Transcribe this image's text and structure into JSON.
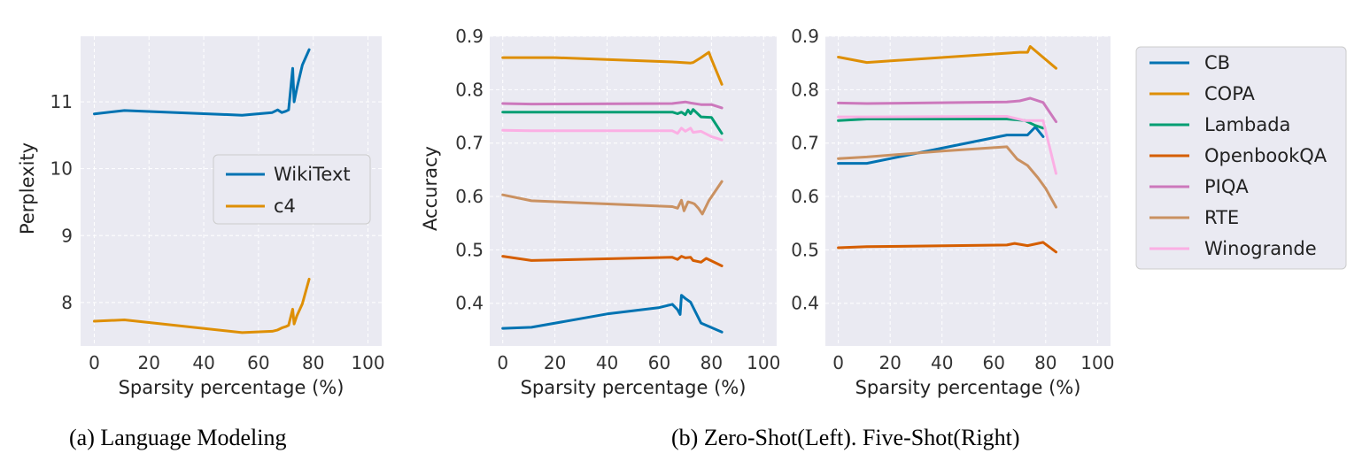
{
  "captions": {
    "a": "(a)  Language Modeling",
    "b": "(b)  Zero-Shot(Left). Five-Shot(Right)"
  },
  "colors": {
    "plot_bg": "#eaeaf2",
    "grid": "#ffffff",
    "CB": "#0173b2",
    "COPA": "#de8f05",
    "Lambada": "#029e73",
    "OpenbookQA": "#d55e00",
    "PIQA": "#cc78bc",
    "RTE": "#ca9161",
    "Winogrande": "#fbafe4",
    "WikiText": "#0173b2",
    "c4": "#de8f05"
  },
  "chart_data": [
    {
      "type": "line",
      "xlabel": "Sparsity percentage (%)",
      "ylabel": "Perplexity",
      "xlim": [
        -5,
        105
      ],
      "ylim": [
        7.35,
        11.98
      ],
      "xticks": [
        0,
        20,
        40,
        60,
        80,
        100
      ],
      "yticks": [
        8,
        9,
        10,
        11
      ],
      "grid": true,
      "legend": "center-right",
      "series": [
        {
          "name": "WikiText",
          "color": "#0173b2",
          "x": [
            0,
            11,
            54,
            65,
            67,
            68.5,
            70,
            71,
            72.5,
            73,
            74,
            76,
            78.5
          ],
          "y": [
            10.82,
            10.87,
            10.8,
            10.84,
            10.88,
            10.84,
            10.86,
            10.88,
            11.5,
            11.0,
            11.2,
            11.55,
            11.78
          ]
        },
        {
          "name": "c4",
          "color": "#de8f05",
          "x": [
            0,
            11,
            54,
            65,
            67,
            68.5,
            70,
            71,
            72.5,
            73,
            74,
            76,
            78.5
          ],
          "y": [
            7.72,
            7.74,
            7.55,
            7.57,
            7.59,
            7.62,
            7.64,
            7.66,
            7.9,
            7.68,
            7.8,
            7.98,
            8.35
          ]
        }
      ]
    },
    {
      "type": "line",
      "xlabel": "Sparsity percentage (%)",
      "ylabel": "Accuracy",
      "xlim": [
        -5,
        105
      ],
      "ylim": [
        0.32,
        0.9
      ],
      "xticks": [
        0,
        20,
        40,
        60,
        80,
        100
      ],
      "yticks": [
        0.4,
        0.5,
        0.6,
        0.7,
        0.8,
        0.9
      ],
      "grid": true,
      "series": [
        {
          "name": "CB",
          "color": "#0173b2",
          "x": [
            0,
            11,
            40,
            60,
            65,
            67,
            68,
            68.5,
            70,
            72,
            76,
            84
          ],
          "y": [
            0.353,
            0.355,
            0.38,
            0.392,
            0.398,
            0.388,
            0.379,
            0.415,
            0.409,
            0.402,
            0.363,
            0.346
          ]
        },
        {
          "name": "COPA",
          "color": "#de8f05",
          "x": [
            0,
            20,
            65,
            72,
            73,
            76,
            79,
            80,
            84
          ],
          "y": [
            0.86,
            0.86,
            0.852,
            0.85,
            0.851,
            0.86,
            0.87,
            0.857,
            0.81
          ]
        },
        {
          "name": "Lambada",
          "color": "#029e73",
          "x": [
            0,
            65,
            67,
            68.5,
            70,
            71,
            72,
            73,
            76,
            80,
            84
          ],
          "y": [
            0.758,
            0.758,
            0.755,
            0.758,
            0.753,
            0.762,
            0.755,
            0.763,
            0.749,
            0.748,
            0.718
          ]
        },
        {
          "name": "OpenbookQA",
          "color": "#d55e00",
          "x": [
            0,
            11,
            65,
            67,
            68.5,
            70,
            72,
            73,
            76,
            78,
            84
          ],
          "y": [
            0.488,
            0.48,
            0.486,
            0.482,
            0.488,
            0.485,
            0.486,
            0.48,
            0.477,
            0.484,
            0.47
          ]
        },
        {
          "name": "PIQA",
          "color": "#cc78bc",
          "x": [
            0,
            11,
            65,
            70,
            72,
            76,
            80,
            84
          ],
          "y": [
            0.774,
            0.773,
            0.774,
            0.777,
            0.775,
            0.772,
            0.772,
            0.766
          ]
        },
        {
          "name": "RTE",
          "color": "#ca9161",
          "x": [
            0,
            11,
            65,
            67,
            68.5,
            69.5,
            71,
            72.5,
            73.5,
            75,
            76.5,
            79,
            84
          ],
          "y": [
            0.603,
            0.592,
            0.581,
            0.578,
            0.593,
            0.573,
            0.59,
            0.588,
            0.586,
            0.578,
            0.567,
            0.592,
            0.628
          ]
        },
        {
          "name": "Winogrande",
          "color": "#fbafe4",
          "x": [
            0,
            11,
            65,
            67,
            68.5,
            70,
            72,
            73,
            76,
            80,
            84
          ],
          "y": [
            0.724,
            0.723,
            0.723,
            0.718,
            0.728,
            0.722,
            0.728,
            0.72,
            0.722,
            0.712,
            0.706
          ]
        }
      ]
    },
    {
      "type": "line",
      "xlabel": "Sparsity percentage (%)",
      "ylabel": "",
      "xlim": [
        -5,
        105
      ],
      "ylim": [
        0.32,
        0.9
      ],
      "xticks": [
        0,
        20,
        40,
        60,
        80,
        100
      ],
      "yticks": [
        0.4,
        0.5,
        0.6,
        0.7,
        0.8,
        0.9
      ],
      "grid": true,
      "series": [
        {
          "name": "CB",
          "color": "#0173b2",
          "x": [
            0,
            11,
            65,
            73,
            76,
            79
          ],
          "y": [
            0.662,
            0.662,
            0.715,
            0.715,
            0.73,
            0.712
          ]
        },
        {
          "name": "COPA",
          "color": "#de8f05",
          "x": [
            0,
            11,
            70,
            73,
            74,
            84
          ],
          "y": [
            0.861,
            0.851,
            0.87,
            0.87,
            0.881,
            0.84
          ]
        },
        {
          "name": "Lambada",
          "color": "#029e73",
          "x": [
            0,
            11,
            65,
            72,
            76,
            79
          ],
          "y": [
            0.742,
            0.745,
            0.745,
            0.742,
            0.733,
            0.728
          ]
        },
        {
          "name": "OpenbookQA",
          "color": "#d55e00",
          "x": [
            0,
            11,
            65,
            68,
            73,
            79,
            84
          ],
          "y": [
            0.504,
            0.506,
            0.509,
            0.512,
            0.508,
            0.514,
            0.496
          ]
        },
        {
          "name": "PIQA",
          "color": "#cc78bc",
          "x": [
            0,
            11,
            65,
            70,
            74,
            79,
            84
          ],
          "y": [
            0.775,
            0.774,
            0.777,
            0.779,
            0.784,
            0.776,
            0.74
          ]
        },
        {
          "name": "RTE",
          "color": "#ca9161",
          "x": [
            0,
            11,
            40,
            65,
            69,
            73,
            77,
            80,
            84
          ],
          "y": [
            0.671,
            0.674,
            0.685,
            0.693,
            0.67,
            0.658,
            0.635,
            0.615,
            0.58
          ]
        },
        {
          "name": "Winogrande",
          "color": "#fbafe4",
          "x": [
            0,
            11,
            65,
            72,
            79,
            84
          ],
          "y": [
            0.749,
            0.749,
            0.75,
            0.742,
            0.742,
            0.643
          ]
        }
      ]
    }
  ],
  "legend_right": {
    "entries": [
      "CB",
      "COPA",
      "Lambada",
      "OpenbookQA",
      "PIQA",
      "RTE",
      "Winogrande"
    ]
  }
}
